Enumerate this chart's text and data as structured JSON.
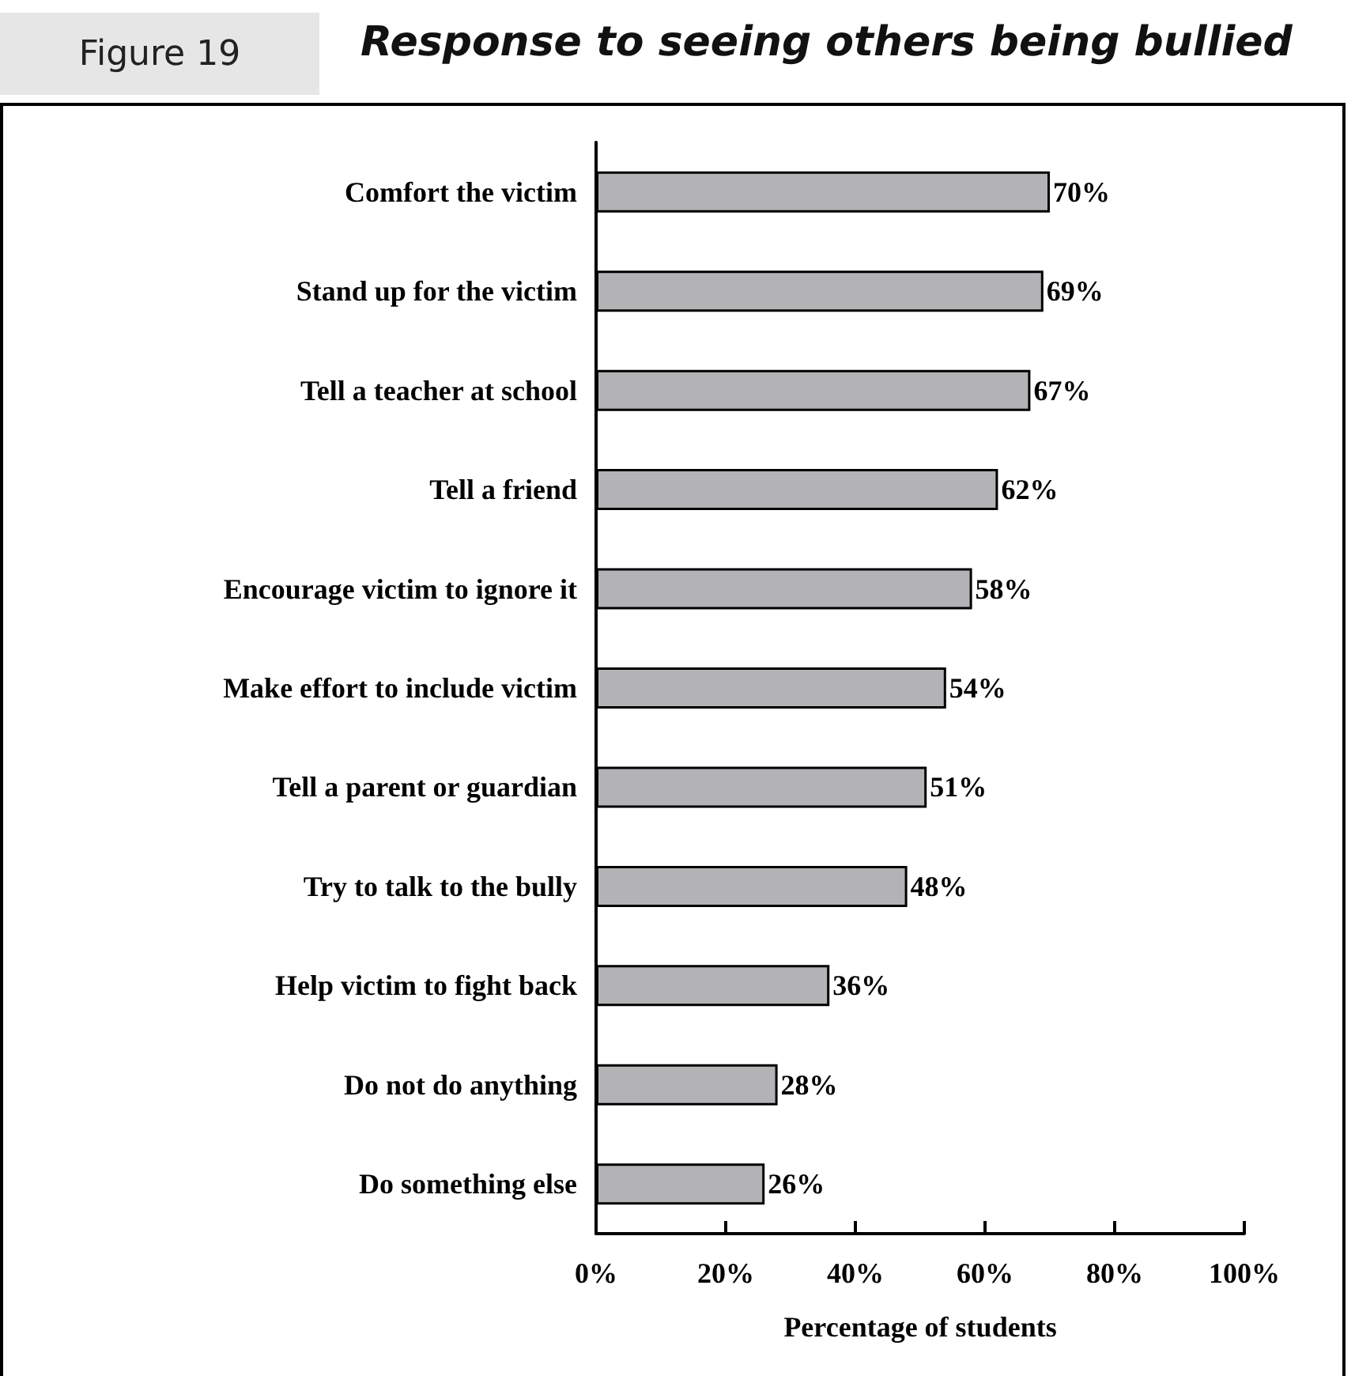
{
  "chart_data": {
    "type": "bar",
    "orientation": "horizontal",
    "title": "Response to seeing others being bullied",
    "annotations": [
      "Figure 19"
    ],
    "categories": [
      "Comfort the victim",
      "Stand up for the victim",
      "Tell a teacher at school",
      "Tell a friend",
      "Encourage victim to ignore it",
      "Make effort to include victim",
      "Tell a parent or guardian",
      "Try to talk to the bully",
      "Help victim to fight back",
      "Do not do anything",
      "Do something else"
    ],
    "values": [
      70,
      69,
      67,
      62,
      58,
      54,
      51,
      48,
      36,
      28,
      26
    ],
    "value_labels": [
      "70%",
      "69%",
      "67%",
      "62%",
      "58%",
      "54%",
      "51%",
      "48%",
      "36%",
      "28%",
      "26%"
    ],
    "color": "#b3b3b6",
    "xlim": [
      0,
      100
    ],
    "xticks": [
      {
        "value": 0,
        "label": "0%"
      },
      {
        "value": 20,
        "label": "20%"
      },
      {
        "value": 40,
        "label": "40%"
      },
      {
        "value": 60,
        "label": "60%"
      },
      {
        "value": 80,
        "label": "80%"
      },
      {
        "value": 100,
        "label": "100%"
      }
    ],
    "xlabel": "Percentage of students",
    "grid": false
  }
}
